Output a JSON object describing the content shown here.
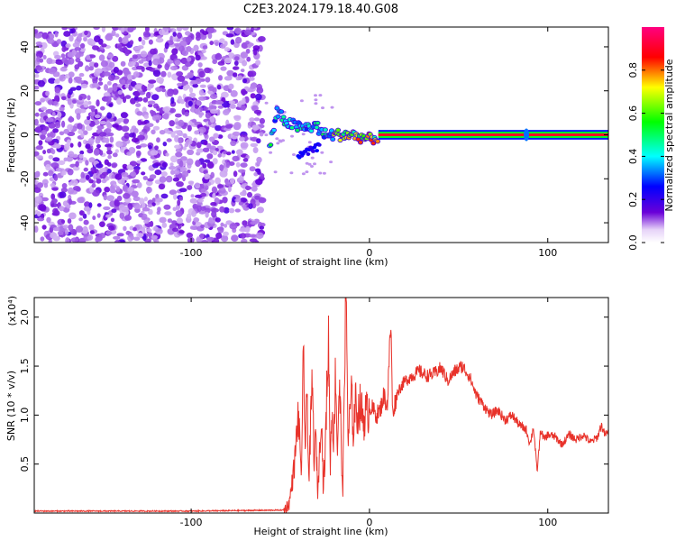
{
  "title": "C2E3.2024.179.18.40.G08",
  "chart_data": [
    {
      "type": "heatmap",
      "xlabel": "Height of straight line (km)",
      "ylabel": "Frequency (Hz)",
      "xlim": [
        -188,
        134
      ],
      "ylim": [
        -49,
        49
      ],
      "x_ticks": [
        -100,
        0,
        100
      ],
      "y_ticks": [
        40,
        20,
        0,
        -20,
        -40
      ],
      "colorbar": {
        "label": "Normalized spectral amplitude",
        "range": [
          0,
          1
        ],
        "ticks": [
          0.0,
          0.2,
          0.4,
          0.6,
          0.8
        ],
        "tick_labels": [
          "0.0",
          "0.2",
          "0.4",
          "0.6",
          "0.8"
        ],
        "colormap": [
          "#ffffff",
          "#6a00d8",
          "#0000ff",
          "#00ffff",
          "#00ff00",
          "#ffff00",
          "#ff0000",
          "#ff0080"
        ]
      },
      "features": {
        "noise_region_x": [
          -188,
          -60
        ],
        "noise_level": 0.2,
        "carrier_track": [
          [
            -56,
            -6
          ],
          [
            -52,
            10
          ],
          [
            -45,
            5
          ],
          [
            -38,
            3
          ],
          [
            -30,
            4
          ],
          [
            -25,
            0
          ],
          [
            -18,
            0
          ],
          [
            -10,
            0
          ],
          [
            0,
            -2
          ],
          [
            5,
            -1
          ],
          [
            10,
            0
          ],
          [
            60,
            0
          ],
          [
            88,
            0
          ],
          [
            134,
            0
          ]
        ],
        "carrier_amplitude_from_x": 5,
        "carrier_peak_amplitude": 0.9
      }
    },
    {
      "type": "line",
      "xlabel": "Height of straight line (km)",
      "ylabel": "SNR (10 * v/v)",
      "multiplier": "(x10⁴)",
      "xlim": [
        -188,
        134
      ],
      "ylim": [
        0,
        2.2
      ],
      "x_ticks": [
        -100,
        0,
        100
      ],
      "y_ticks": [
        0.5,
        1.0,
        1.5,
        2.0
      ],
      "y_tick_labels": [
        "0.5",
        "1.0",
        "1.5",
        "2.0"
      ],
      "color": "#e8322a",
      "series": [
        {
          "x": [
            -188,
            -100,
            -48,
            -45,
            -42,
            -40,
            -38,
            -37,
            -36,
            -35,
            -34,
            -33,
            -32,
            -31,
            -30,
            -29,
            -28,
            -27,
            -26,
            -25,
            -24,
            -23,
            -22,
            -21,
            -20,
            -19,
            -18,
            -17,
            -16,
            -15,
            -14,
            -13,
            -12,
            -11,
            -10,
            -9,
            -8,
            -7,
            -6,
            -5,
            -4,
            -3,
            -2,
            -1,
            0,
            2,
            4,
            6,
            8,
            10,
            12,
            13,
            14,
            16,
            18,
            20,
            24,
            28,
            32,
            36,
            40,
            44,
            48,
            52,
            56,
            60,
            64,
            68,
            72,
            76,
            80,
            84,
            88,
            90,
            92,
            94,
            96,
            98,
            100,
            104,
            108,
            112,
            116,
            120,
            124,
            128,
            130,
            132,
            134
          ],
          "y": [
            0.02,
            0.02,
            0.03,
            0.1,
            0.5,
            1.0,
            0.4,
            1.72,
            0.6,
            1.3,
            0.3,
            0.9,
            1.35,
            0.5,
            0.8,
            0.2,
            0.6,
            1.1,
            0.3,
            0.5,
            1.2,
            1.8,
            0.5,
            1.1,
            0.7,
            1.5,
            0.6,
            1.3,
            0.9,
            0.1,
            1.6,
            2.2,
            0.7,
            1.0,
            1.2,
            0.8,
            1.15,
            1.0,
            1.05,
            1.1,
            1.0,
            0.95,
            1.05,
            1.0,
            1.1,
            1.05,
            1.0,
            1.05,
            1.2,
            1.1,
            1.97,
            1.0,
            1.1,
            1.25,
            1.3,
            1.35,
            1.4,
            1.45,
            1.4,
            1.42,
            1.48,
            1.35,
            1.45,
            1.5,
            1.4,
            1.2,
            1.1,
            1.0,
            1.05,
            0.95,
            1.0,
            0.9,
            0.85,
            0.7,
            0.88,
            0.42,
            0.85,
            0.75,
            0.8,
            0.78,
            0.7,
            0.8,
            0.75,
            0.8,
            0.72,
            0.78,
            0.9,
            0.8,
            0.82
          ]
        }
      ]
    }
  ]
}
